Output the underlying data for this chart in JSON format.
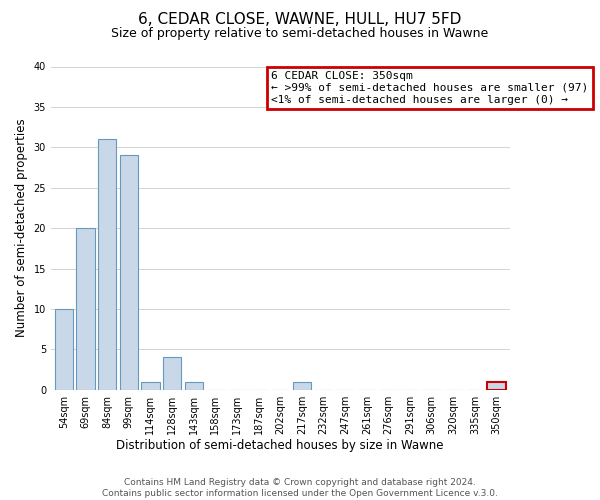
{
  "title": "6, CEDAR CLOSE, WAWNE, HULL, HU7 5FD",
  "subtitle": "Size of property relative to semi-detached houses in Wawne",
  "xlabel": "Distribution of semi-detached houses by size in Wawne",
  "ylabel": "Number of semi-detached properties",
  "bar_labels": [
    "54sqm",
    "69sqm",
    "84sqm",
    "99sqm",
    "114sqm",
    "128sqm",
    "143sqm",
    "158sqm",
    "173sqm",
    "187sqm",
    "202sqm",
    "217sqm",
    "232sqm",
    "247sqm",
    "261sqm",
    "276sqm",
    "291sqm",
    "306sqm",
    "320sqm",
    "335sqm",
    "350sqm"
  ],
  "bar_values": [
    10,
    20,
    31,
    29,
    1,
    4,
    1,
    0,
    0,
    0,
    0,
    1,
    0,
    0,
    0,
    0,
    0,
    0,
    0,
    0,
    1
  ],
  "bar_color": "#c8d8e8",
  "bar_edge_color": "#6699bb",
  "highlight_bar_index": 20,
  "highlight_bar_edge_color": "#cc0000",
  "ylim": [
    0,
    40
  ],
  "yticks": [
    0,
    5,
    10,
    15,
    20,
    25,
    30,
    35,
    40
  ],
  "legend_title": "6 CEDAR CLOSE: 350sqm",
  "legend_line1": "← >99% of semi-detached houses are smaller (97)",
  "legend_line2": "<1% of semi-detached houses are larger (0) →",
  "legend_box_color": "#cc0000",
  "footer_line1": "Contains HM Land Registry data © Crown copyright and database right 2024.",
  "footer_line2": "Contains public sector information licensed under the Open Government Licence v.3.0.",
  "title_fontsize": 11,
  "subtitle_fontsize": 9,
  "axis_label_fontsize": 8.5,
  "tick_fontsize": 7,
  "legend_fontsize": 8,
  "footer_fontsize": 6.5
}
